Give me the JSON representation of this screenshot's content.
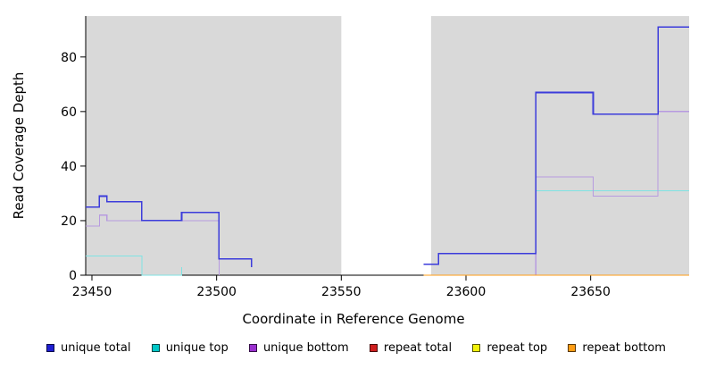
{
  "chart_data": {
    "type": "line",
    "subtype": "step-after",
    "title": "",
    "xlabel": "Coordinate in Reference Genome",
    "ylabel": "Read Coverage Depth",
    "xlim": [
      23447.5,
      23689.5
    ],
    "ylim": [
      0,
      95
    ],
    "xticks": [
      23450,
      23500,
      23550,
      23600,
      23650
    ],
    "yticks": [
      0,
      20,
      40,
      60,
      80
    ],
    "grid": false,
    "plot_background": "#d9d9d9",
    "gap_region": [
      23550,
      23586
    ],
    "legend_position": "bottom",
    "series": [
      {
        "name": "unique total",
        "swatch_color": "#1f1fd1",
        "line_color": "#3c3cdb",
        "line_width": 1.6,
        "points": [
          [
            23447.5,
            25
          ],
          [
            23453,
            29
          ],
          [
            23456,
            27
          ],
          [
            23470,
            20
          ],
          [
            23486,
            23
          ],
          [
            23501,
            6
          ],
          [
            23514,
            3
          ],
          [
            23550,
            null
          ],
          [
            23583,
            4
          ],
          [
            23589,
            8
          ],
          [
            23628,
            67
          ],
          [
            23651,
            59
          ],
          [
            23677,
            91
          ],
          [
            23689.5,
            91
          ]
        ]
      },
      {
        "name": "unique top",
        "swatch_color": "#00c8c8",
        "line_color": "#7fe3e3",
        "line_width": 1.2,
        "points": [
          [
            23447.5,
            7
          ],
          [
            23470,
            0
          ],
          [
            23486,
            3
          ],
          [
            23550,
            null
          ],
          [
            23583,
            0
          ],
          [
            23628,
            31
          ],
          [
            23689.5,
            31
          ]
        ]
      },
      {
        "name": "unique bottom",
        "swatch_color": "#9a30cf",
        "line_color": "#b79ae0",
        "line_width": 1.2,
        "points": [
          [
            23447.5,
            18
          ],
          [
            23453,
            22
          ],
          [
            23456,
            20
          ],
          [
            23501,
            0
          ],
          [
            23550,
            null
          ],
          [
            23583,
            0
          ],
          [
            23628,
            36
          ],
          [
            23651,
            29
          ],
          [
            23677,
            60
          ],
          [
            23689.5,
            60
          ]
        ]
      },
      {
        "name": "repeat total",
        "swatch_color": "#cf1f1f",
        "line_color": "#cf1f1f",
        "line_width": 1.2,
        "points": [
          [
            23447.5,
            0
          ],
          [
            23550,
            null
          ],
          [
            23583,
            0
          ],
          [
            23689.5,
            0
          ]
        ]
      },
      {
        "name": "repeat top",
        "swatch_color": "#f2f20a",
        "line_color": "#f2f20a",
        "line_width": 1.2,
        "points": [
          [
            23447.5,
            0
          ],
          [
            23550,
            null
          ],
          [
            23583,
            0
          ],
          [
            23689.5,
            0
          ]
        ]
      },
      {
        "name": "repeat bottom",
        "swatch_color": "#ff9d14",
        "line_color": "#ff9d14",
        "line_width": 1.2,
        "points": [
          [
            23447.5,
            0
          ],
          [
            23550,
            null
          ],
          [
            23583,
            0
          ],
          [
            23689.5,
            0
          ]
        ]
      }
    ]
  }
}
